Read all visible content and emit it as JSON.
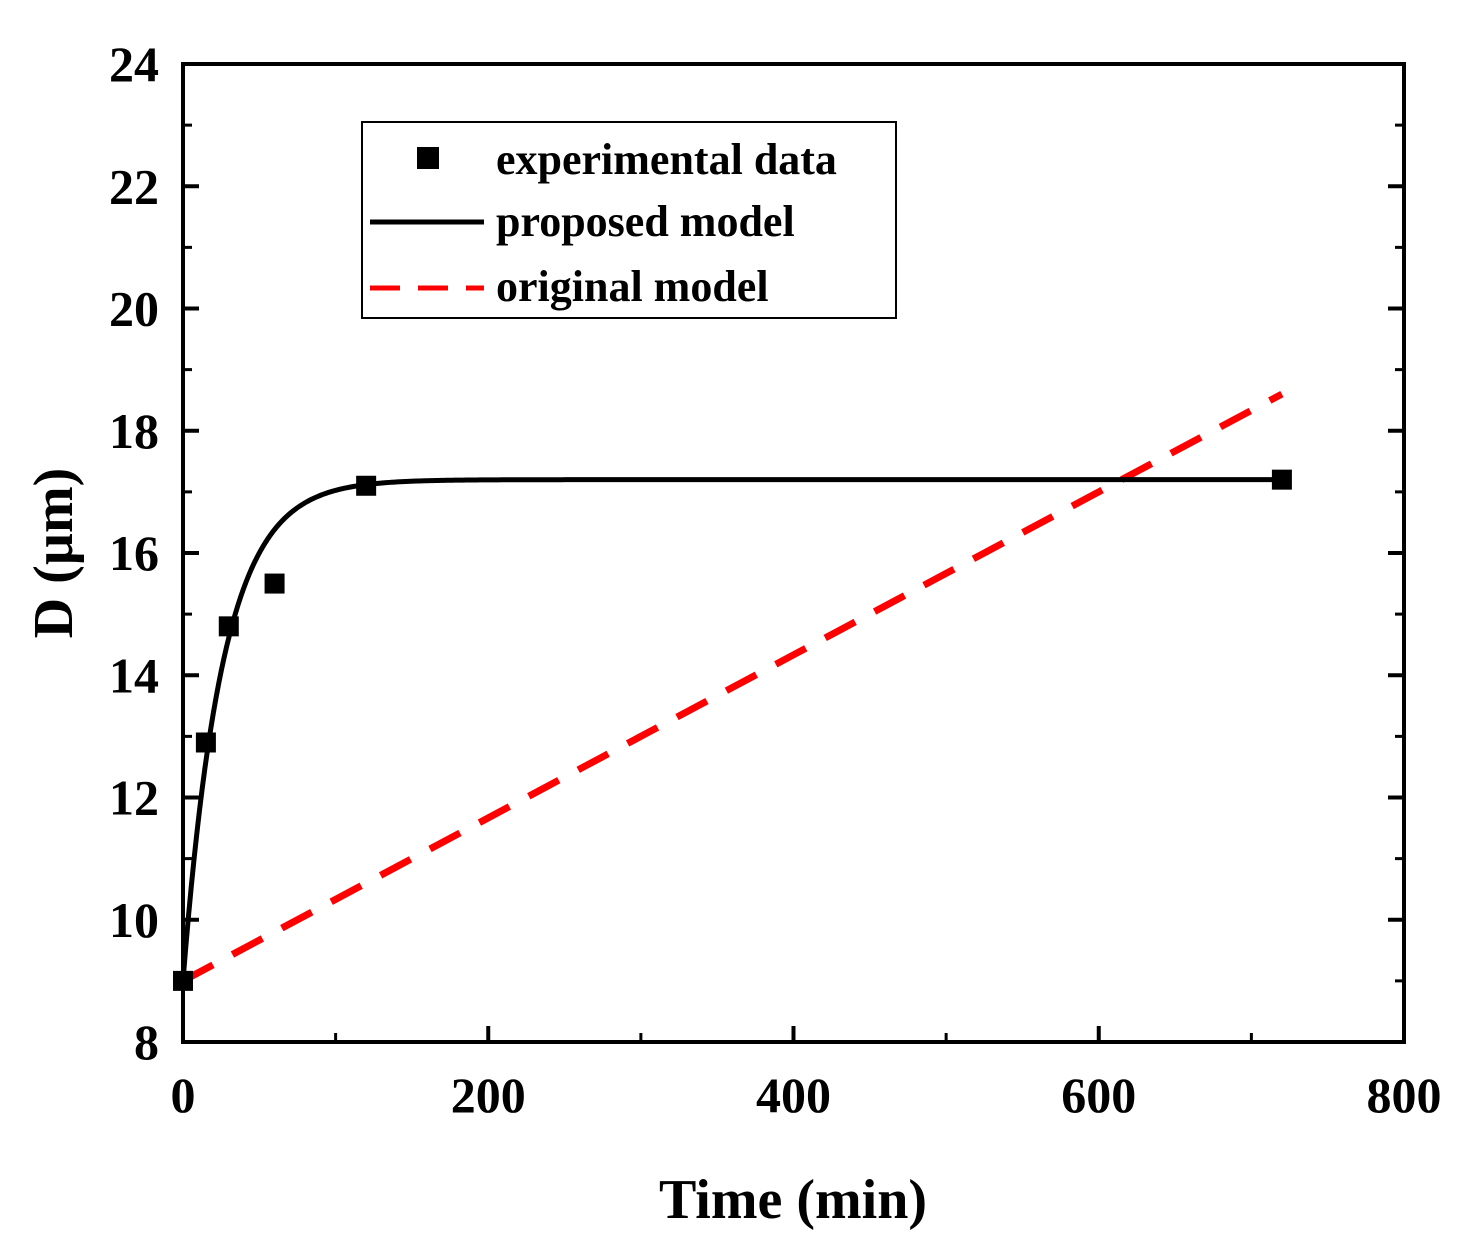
{
  "chart_data": {
    "type": "line",
    "title": "",
    "xlabel": "Time (min)",
    "ylabel": "D (µm)",
    "xlim": [
      0,
      800
    ],
    "ylim": [
      8,
      24
    ],
    "xticks": [
      0,
      200,
      400,
      600,
      800
    ],
    "yticks": [
      8,
      10,
      12,
      14,
      16,
      18,
      20,
      22,
      24
    ],
    "grid": false,
    "legend_position": "top-left",
    "series": [
      {
        "name": "experimental data",
        "kind": "scatter",
        "marker": "square",
        "color": "#000000",
        "x": [
          0,
          15,
          30,
          60,
          120,
          720
        ],
        "y": [
          9.0,
          12.9,
          14.8,
          15.5,
          17.1,
          17.2
        ]
      },
      {
        "name": "proposed model",
        "kind": "line",
        "style": "solid",
        "color": "#000000",
        "model": {
          "form": "exp_saturation",
          "y0": 9.0,
          "ymax": 17.2,
          "tau": 26
        },
        "x_range": [
          0,
          720
        ]
      },
      {
        "name": "original model",
        "kind": "line",
        "style": "dashed",
        "color": "#ff0000",
        "x": [
          0,
          720
        ],
        "y": [
          9.0,
          18.6
        ]
      }
    ]
  }
}
